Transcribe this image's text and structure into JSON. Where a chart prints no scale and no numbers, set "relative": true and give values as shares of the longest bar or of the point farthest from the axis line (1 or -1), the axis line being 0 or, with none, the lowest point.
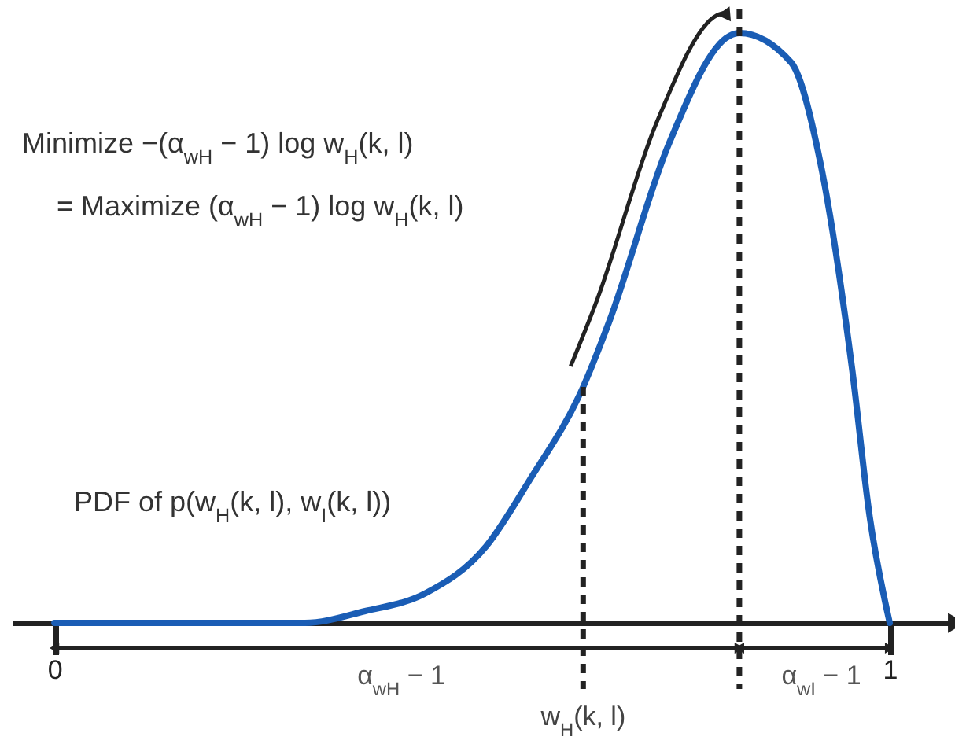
{
  "chart_data": {
    "type": "line",
    "relative": true,
    "x": [
      0,
      0.3,
      0.372,
      0.444,
      0.517,
      0.568,
      0.633,
      0.664,
      0.735,
      0.808,
      0.82,
      0.882,
      0.917,
      0.955,
      0.976,
      1
    ],
    "series": [
      {
        "color": "#1a5db5",
        "values": [
          0,
          0,
          0.02,
          0.05,
          0.13,
          0.24,
          0.4,
          0.51,
          0.81,
          0.995,
          1,
          0.95,
          0.78,
          0.43,
          0.18,
          0
        ]
      }
    ],
    "xlim": [
      -0.05,
      1.08
    ],
    "xticks": [
      0,
      1
    ],
    "tick_labels": "x",
    "marker": "none",
    "line_style": "solid",
    "ref_lines": [
      {
        "axis": "x",
        "value": 0.633,
        "label": "w$_{H}$(k, l)",
        "color": "#222222",
        "line_style": "dashed"
      },
      {
        "axis": "x",
        "value": 0.82,
        "color": "#222222",
        "line_style": "dashed"
      }
    ],
    "annotations": [
      "Minimize −(α$_{wH}$ − 1) log w$_{H}$(k, l)",
      "= Maximize (α$_{wH}$ − 1) log w$_{H}$(k, l)",
      "PDF of p(w$_{H}$(k, l), w$_{I}$(k, l))",
      "α$_{wH}$ − 1",
      "α$_{wI}$ − 1"
    ]
  }
}
